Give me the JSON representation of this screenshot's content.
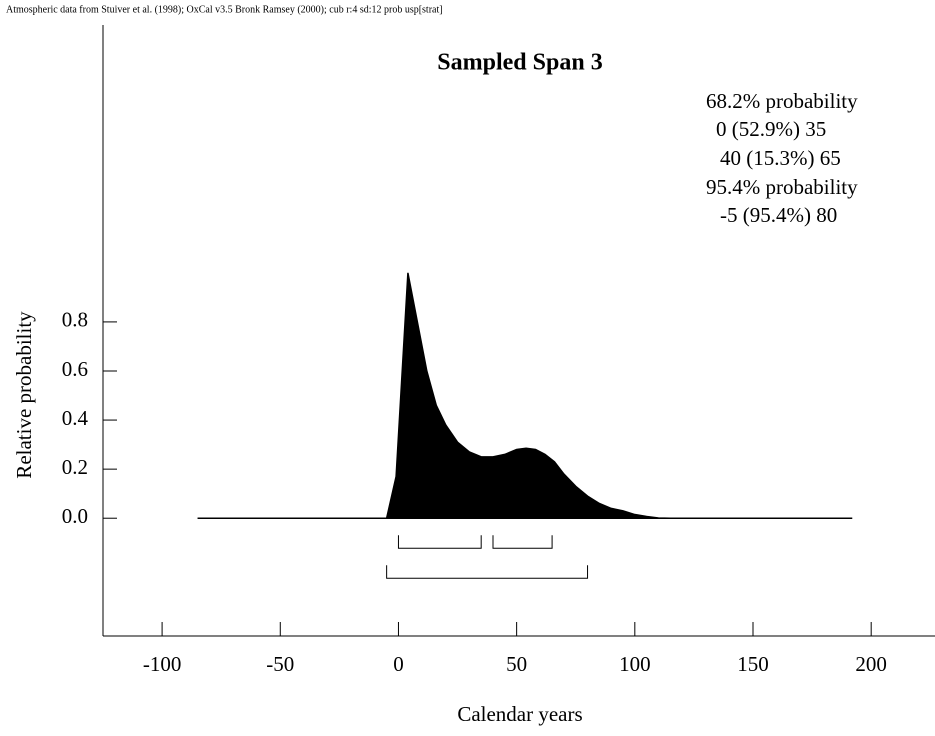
{
  "chart_data": {
    "type": "area",
    "annotation": "Atmospheric data from Stuiver et al. (1998); OxCal v3.5 Bronk Ramsey (2000); cub r:4 sd:12 prob usp[strat]",
    "title": "Sampled Span 3",
    "x_label": "Calendar years",
    "y_label": "Relative probability",
    "color": "#000000",
    "x": [
      -85,
      -5,
      -1,
      4,
      8,
      12,
      16,
      20,
      25,
      30,
      35,
      40,
      45,
      50,
      54,
      58,
      62,
      66,
      70,
      75,
      80,
      85,
      90,
      95,
      100,
      105,
      110,
      115,
      192
    ],
    "values": [
      0,
      0,
      0.17,
      1.0,
      0.8,
      0.6,
      0.46,
      0.38,
      0.31,
      0.27,
      0.25,
      0.25,
      0.26,
      0.28,
      0.285,
      0.28,
      0.26,
      0.23,
      0.18,
      0.13,
      0.09,
      0.06,
      0.04,
      0.03,
      0.015,
      0.007,
      0.001,
      0,
      0
    ],
    "xlim": [
      -125,
      227
    ],
    "ylim": [
      -0.48,
      2.01
    ],
    "xticks": [
      -100,
      -50,
      0,
      50,
      100,
      150,
      200
    ],
    "yticks": [
      {
        "value": 0,
        "label": "0.0"
      },
      0.2,
      0.4,
      0.6,
      0.8
    ],
    "ranges": [
      {
        "name": "68.2% probability",
        "intervals": [
          {
            "from": 0,
            "to": 35,
            "label": "0 (52.9%) 35"
          },
          {
            "from": 40,
            "to": 65,
            "label": "40 (15.3%) 65"
          }
        ]
      },
      {
        "name": "95.4% probability",
        "intervals": [
          {
            "from": -5,
            "to": 80,
            "label": "-5 (95.4%) 80"
          }
        ]
      }
    ]
  }
}
